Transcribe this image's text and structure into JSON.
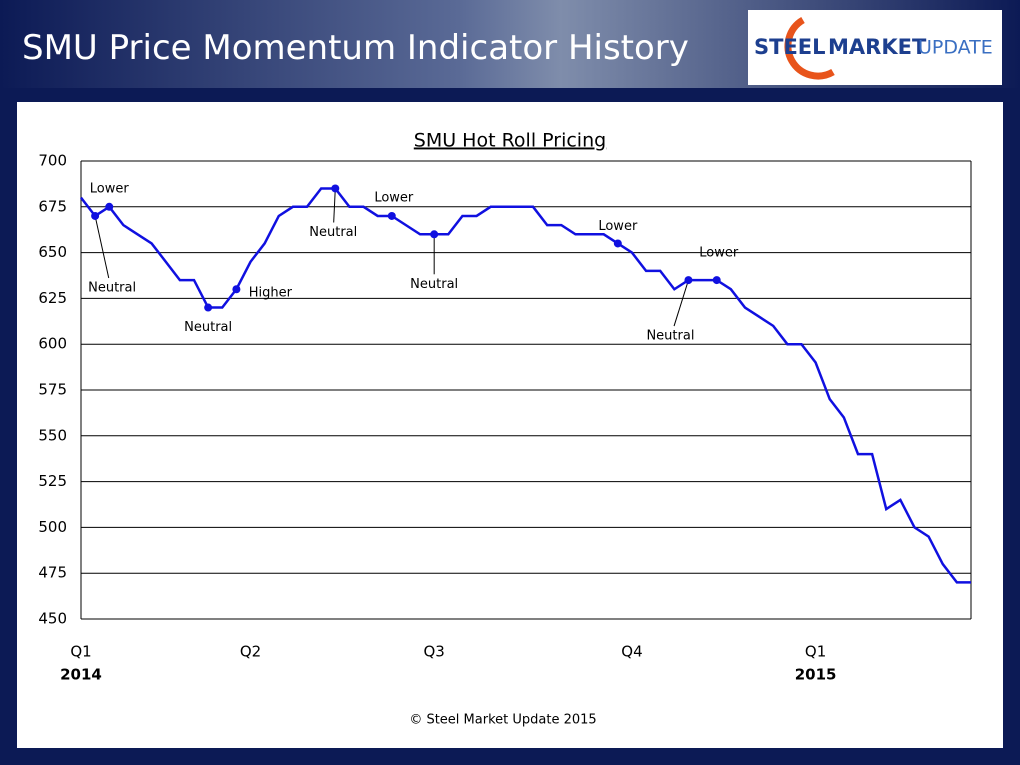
{
  "slide_title": "SMU Price Momentum Indicator History",
  "logo": {
    "words": [
      "STEEL",
      "MARKET",
      "UPDATE"
    ]
  },
  "chart_data": {
    "type": "line",
    "title": "SMU Hot Roll Pricing",
    "source": "© Steel Market Update 2015",
    "color": "#1010e0",
    "x": [
      0,
      1,
      2,
      3,
      4,
      5,
      6,
      7,
      8,
      9,
      10,
      11,
      12,
      13,
      14,
      15,
      16,
      17,
      18,
      19,
      20,
      21,
      22,
      23,
      24,
      25,
      26,
      27,
      28,
      29,
      30,
      31,
      32,
      33,
      34,
      35,
      36,
      37,
      38,
      39,
      40,
      41,
      42,
      43,
      44,
      45,
      46,
      47,
      48,
      49,
      50,
      51,
      52,
      53,
      54,
      55,
      56,
      57,
      58,
      59,
      60,
      61,
      62,
      63
    ],
    "values": [
      680,
      670,
      675,
      665,
      660,
      655,
      645,
      635,
      635,
      620,
      620,
      630,
      645,
      655,
      670,
      675,
      675,
      685,
      685,
      675,
      675,
      670,
      670,
      665,
      660,
      660,
      660,
      670,
      670,
      675,
      675,
      675,
      675,
      665,
      665,
      660,
      660,
      660,
      655,
      650,
      640,
      640,
      630,
      635,
      635,
      635,
      630,
      620,
      615,
      610,
      600,
      600,
      590,
      570,
      560,
      540,
      540,
      510,
      515,
      500,
      495,
      480,
      470,
      470
    ],
    "xlim": [
      0,
      63
    ],
    "xticks": [
      {
        "value": 0,
        "label": "Q1"
      },
      {
        "value": 12,
        "label": "Q2"
      },
      {
        "value": 25,
        "label": "Q3"
      },
      {
        "value": 39,
        "label": "Q4"
      },
      {
        "value": 52,
        "label": "Q1"
      }
    ],
    "x_year_labels": [
      {
        "value": 0,
        "label": "2014"
      },
      {
        "value": 52,
        "label": "2015"
      }
    ],
    "ylim": [
      450,
      700
    ],
    "yticks": [
      450,
      475,
      500,
      525,
      550,
      575,
      600,
      625,
      650,
      675,
      700
    ],
    "grid": true,
    "annotations": [
      {
        "x": 1,
        "text": "Neutral"
      },
      {
        "x": 2,
        "text": "Lower"
      },
      {
        "x": 9,
        "text": "Neutral"
      },
      {
        "x": 11,
        "text": "Higher"
      },
      {
        "x": 18,
        "text": "Neutral"
      },
      {
        "x": 22,
        "text": "Lower"
      },
      {
        "x": 25,
        "text": "Neutral"
      },
      {
        "x": 38,
        "text": "Lower"
      },
      {
        "x": 43,
        "text": "Neutral"
      },
      {
        "x": 45,
        "text": "Lower"
      }
    ]
  }
}
